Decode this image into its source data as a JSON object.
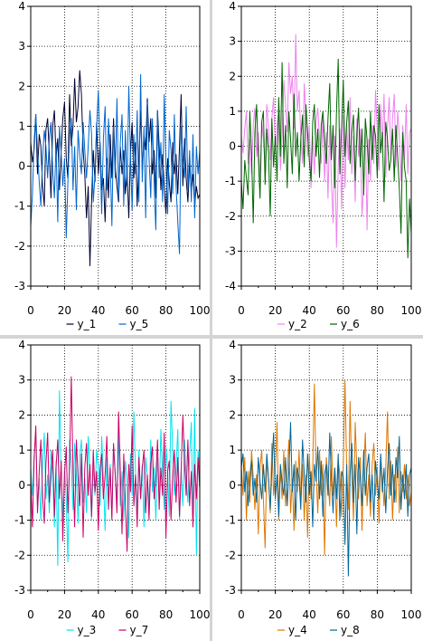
{
  "chart_data": [
    {
      "type": "line",
      "xlim": [
        0,
        100
      ],
      "ylim": [
        -3,
        4
      ],
      "xticks": [
        "0",
        "20",
        "40",
        "60",
        "80",
        "100"
      ],
      "yticks": [
        "-3",
        "-2",
        "-1",
        "0",
        "1",
        "2",
        "3",
        "4"
      ],
      "grid": true,
      "legend_position": "bottom",
      "series": [
        {
          "name": "y_1",
          "color": "#000033",
          "values": [
            0.6,
            0.1,
            0.4,
            1.3,
            -0.2,
            0.8,
            0.5,
            -0.5,
            -1.0,
            0.9,
            1.2,
            0.3,
            -0.8,
            1.0,
            1.4,
            0.2,
            0.7,
            -0.6,
            0.4,
            1.2,
            1.6,
            0.2,
            -0.3,
            1.8,
            0.5,
            1.0,
            2.2,
            1.1,
            1.5,
            2.4,
            1.8,
            0.4,
            -0.2,
            -1.3,
            -0.5,
            -2.5,
            -0.9,
            0.4,
            -0.4,
            1.1,
            -0.2,
            0.6,
            -0.6,
            -0.3,
            -1.4,
            0.2,
            -0.8,
            0.8,
            -0.3,
            1.2,
            0.0,
            -0.5,
            -0.9,
            0.5,
            -0.2,
            0.4,
            -0.7,
            -0.1,
            -1.3,
            0.3,
            1.1,
            -0.3,
            0.6,
            -1.0,
            0.2,
            1.4,
            -0.1,
            0.8,
            0.4,
            1.7,
            0.6,
            1.2,
            -0.2,
            0.4,
            -0.8,
            1.4,
            0.5,
            -0.6,
            0.3,
            -0.5,
            -1.2,
            0.2,
            -0.4,
            -0.9,
            0.6,
            -0.2,
            0.3,
            -0.7,
            0.5,
            1.8,
            -0.5,
            0.7,
            -0.3,
            -0.9,
            0.1,
            -0.6,
            -0.2,
            -1.0,
            -0.5,
            -0.8,
            -0.7
          ]
        },
        {
          "name": "y_5",
          "color": "#0066cc",
          "values": [
            -1.5,
            -0.7,
            0.6,
            1.3,
            0.4,
            -0.4,
            -1.0,
            0.2,
            0.9,
            0.5,
            -0.3,
            0.7,
            1.1,
            -0.1,
            -0.8,
            0.6,
            -1.4,
            1.0,
            0.3,
            -0.5,
            0.2,
            -1.8,
            -0.4,
            0.8,
            1.2,
            -0.6,
            0.5,
            -1.1,
            0.9,
            0.3,
            -0.2,
            1.1,
            0.4,
            -0.3,
            0.5,
            1.4,
            0.8,
            -0.9,
            -0.2,
            1.0,
            1.9,
            0.4,
            -1.2,
            0.7,
            1.5,
            -0.6,
            1.2,
            0.1,
            -1.5,
            1.0,
            -0.3,
            1.7,
            -0.8,
            0.6,
            1.3,
            -1.0,
            0.9,
            -0.5,
            2.0,
            0.3,
            -1.1,
            0.8,
            -0.2,
            1.4,
            -0.9,
            2.3,
            -0.4,
            1.0,
            -1.3,
            1.6,
            0.2,
            -0.8,
            1.2,
            -0.4,
            -1.6,
            1.4,
            -0.3,
            0.6,
            -0.9,
            1.8,
            0.1,
            -1.2,
            0.9,
            0.4,
            -0.7,
            1.3,
            -0.5,
            -1.4,
            -2.2,
            1.0,
            0.2,
            -0.3,
            1.5,
            -0.6,
            0.4,
            -0.9,
            0.8,
            -1.3,
            0.5,
            -0.2,
            0.4
          ]
        }
      ]
    },
    {
      "type": "line",
      "xlim": [
        0,
        100
      ],
      "ylim": [
        -4,
        4
      ],
      "xticks": [
        "0",
        "20",
        "40",
        "60",
        "80",
        "100"
      ],
      "yticks": [
        "-4",
        "-3",
        "-2",
        "-1",
        "0",
        "1",
        "2",
        "3",
        "4"
      ],
      "grid": true,
      "legend_position": "bottom",
      "series": [
        {
          "name": "y_2",
          "color": "#ee82ee",
          "values": [
            0.3,
            -0.2,
            0.5,
            1.0,
            -0.5,
            0.2,
            -0.8,
            0.6,
            1.1,
            -0.3,
            0.4,
            -1.0,
            0.7,
            0.2,
            -0.6,
            1.2,
            0.5,
            -0.4,
            0.8,
            1.4,
            -0.2,
            0.6,
            1.0,
            -0.7,
            0.3,
            1.9,
            1.2,
            0.4,
            2.4,
            1.5,
            2.0,
            0.5,
            3.2,
            1.0,
            1.6,
            0.3,
            -0.5,
            1.8,
            0.9,
            -0.3,
            0.6,
            -1.2,
            0.3,
            -0.8,
            0.7,
            1.1,
            0.2,
            -0.5,
            0.9,
            -1.0,
            0.4,
            -1.5,
            0.6,
            -0.9,
            -2.2,
            0.3,
            -2.9,
            -0.6,
            0.5,
            -1.8,
            0.9,
            -1.2,
            0.6,
            -0.4,
            1.4,
            -0.8,
            0.3,
            -1.6,
            0.8,
            -0.3,
            0.5,
            -2.0,
            -1.1,
            0.7,
            -2.4,
            0.2,
            -1.0,
            0.6,
            -0.5,
            1.6,
            0.4,
            -0.7,
            1.2,
            0.0,
            1.5,
            -0.9,
            0.5,
            1.4,
            -0.3,
            0.8,
            1.5,
            -0.6,
            1.0,
            0.3,
            -1.0,
            0.6,
            -0.4,
            1.2,
            -0.8,
            0.4,
            0.5
          ]
        },
        {
          "name": "y_6",
          "color": "#006600",
          "values": [
            -1.0,
            -1.8,
            -0.4,
            -0.9,
            -1.4,
            1.0,
            -0.2,
            -2.2,
            0.4,
            1.2,
            -0.3,
            -1.5,
            0.7,
            1.0,
            -1.1,
            0.5,
            -0.2,
            -2.0,
            0.8,
            -0.6,
            0.3,
            -1.0,
            1.4,
            -0.3,
            2.4,
            -0.5,
            0.6,
            -1.2,
            1.0,
            0.2,
            -0.8,
            1.5,
            -0.3,
            0.4,
            -1.0,
            0.2,
            0.9,
            -0.6,
            1.2,
            0.4,
            -0.4,
            -1.0,
            0.7,
            1.2,
            -0.3,
            0.5,
            -0.9,
            0.6,
            1.0,
            0.2,
            -0.5,
            0.8,
            1.8,
            -0.4,
            0.6,
            -1.2,
            1.0,
            2.5,
            -0.8,
            0.5,
            1.9,
            -0.3,
            0.7,
            1.3,
            -0.5,
            0.4,
            0.9,
            -1.0,
            0.3,
            1.1,
            -0.6,
            0.5,
            -1.4,
            0.8,
            0.2,
            -0.8,
            1.0,
            -0.4,
            0.6,
            0.3,
            -0.9,
            1.2,
            -0.2,
            0.4,
            -1.6,
            0.7,
            0.2,
            -0.7,
            -0.4,
            0.5,
            -1.0,
            0.6,
            -0.3,
            -1.2,
            -2.5,
            0.4,
            -0.6,
            -1.0,
            -3.2,
            -1.5,
            -2.5
          ]
        }
      ]
    },
    {
      "type": "line",
      "xlim": [
        0,
        100
      ],
      "ylim": [
        -3,
        4
      ],
      "xticks": [
        "0",
        "20",
        "40",
        "60",
        "80",
        "100"
      ],
      "yticks": [
        "-3",
        "-2",
        "-1",
        "0",
        "1",
        "2",
        "3",
        "4"
      ],
      "grid": true,
      "legend_position": "bottom",
      "series": [
        {
          "name": "y_3",
          "color": "#00e5ee",
          "values": [
            0.5,
            -0.3,
            0.8,
            1.4,
            -0.6,
            0.2,
            -1.0,
            0.6,
            1.5,
            -0.4,
            0.3,
            -0.8,
            1.0,
            0.4,
            -1.2,
            0.7,
            -2.3,
            2.7,
            0.2,
            -0.9,
            0.5,
            -0.4,
            -2.2,
            1.3,
            0.6,
            -0.7,
            1.2,
            0.3,
            -1.1,
            0.8,
            1.3,
            -0.5,
            0.2,
            -0.8,
            1.4,
            0.4,
            -1.0,
            0.6,
            -0.3,
            1.0,
            0.5,
            -0.6,
            1.4,
            0.2,
            -1.3,
            0.8,
            -0.4,
            0.6,
            -0.9,
            1.1,
            0.3,
            -0.5,
            1.5,
            -0.6,
            0.4,
            -1.0,
            0.7,
            0.2,
            -1.5,
            0.9,
            -0.3,
            2.1,
            0.4,
            -0.8,
            1.0,
            -0.4,
            0.6,
            -1.2,
            0.8,
            0.3,
            -0.6,
            1.3,
            -0.2,
            0.5,
            -1.0,
            0.8,
            -0.4,
            1.6,
            0.3,
            -0.7,
            1.1,
            0.4,
            -0.9,
            2.4,
            1.0,
            -0.3,
            0.5,
            1.6,
            -1.0,
            0.4,
            -0.6,
            1.3,
            0.2,
            -0.5,
            0.9,
            1.8,
            -1.2,
            2.2,
            -2.0,
            1.0,
            0.3
          ]
        },
        {
          "name": "y_7",
          "color": "#cc0066",
          "values": [
            0.2,
            -1.2,
            0.7,
            1.7,
            -0.8,
            0.4,
            1.3,
            -0.3,
            -1.1,
            0.6,
            1.5,
            -0.5,
            0.2,
            1.0,
            -0.9,
            0.5,
            1.3,
            -0.4,
            0.7,
            -1.6,
            0.3,
            1.1,
            -0.8,
            0.6,
            3.1,
            0.4,
            -1.2,
            1.3,
            0.2,
            -0.6,
            0.9,
            -1.5,
            0.5,
            1.2,
            -0.3,
            0.6,
            -0.9,
            1.0,
            -0.2,
            0.4,
            -1.3,
            0.5,
            0.9,
            -0.4,
            0.3,
            1.4,
            -0.7,
            0.5,
            -1.0,
            1.2,
            0.3,
            -0.8,
            2.1,
            0.4,
            -1.4,
            0.9,
            -0.5,
            -1.9,
            0.6,
            -0.2,
            1.7,
            -0.6,
            0.3,
            -1.2,
            0.8,
            -0.4,
            0.5,
            1.0,
            -0.8,
            0.3,
            -1.0,
            0.6,
            1.1,
            -0.4,
            0.2,
            1.3,
            -0.7,
            0.5,
            -0.3,
            1.5,
            -1.5,
            0.4,
            0.7,
            -1.0,
            0.3,
            1.0,
            -0.5,
            0.8,
            -0.9,
            0.4,
            2.0,
            0.6,
            -0.3,
            1.3,
            -0.6,
            0.4,
            -1.2,
            0.6,
            -0.4,
            0.8,
            -0.1
          ]
        }
      ]
    },
    {
      "type": "line",
      "xlim": [
        0,
        100
      ],
      "ylim": [
        -3,
        4
      ],
      "xticks": [
        "0",
        "20",
        "40",
        "60",
        "80",
        "100"
      ],
      "yticks": [
        "-3",
        "-2",
        "-1",
        "0",
        "1",
        "2",
        "3",
        "4"
      ],
      "grid": true,
      "legend_position": "bottom",
      "series": [
        {
          "name": "y_4",
          "color": "#dd7700",
          "values": [
            0.6,
            -0.3,
            0.8,
            -1.0,
            0.4,
            -0.5,
            1.0,
            0.2,
            -0.7,
            0.3,
            -1.4,
            0.5,
            1.0,
            -0.4,
            -1.8,
            0.7,
            0.2,
            -0.8,
            1.2,
            -0.3,
            0.4,
            1.8,
            -1.0,
            0.5,
            -0.4,
            1.0,
            -0.6,
            0.3,
            1.3,
            -0.8,
            0.2,
            -1.3,
            0.7,
            -0.2,
            1.0,
            -0.5,
            0.6,
            -1.0,
            0.3,
            -1.5,
            0.9,
            -0.4,
            0.5,
            2.9,
            0.4,
            -0.8,
            1.0,
            -0.3,
            0.6,
            -2.0,
            0.8,
            0.2,
            -0.6,
            1.4,
            -0.3,
            0.5,
            -1.2,
            0.7,
            0.3,
            -0.9,
            0.6,
            3.0,
            0.4,
            -0.7,
            2.4,
            0.3,
            -1.0,
            1.8,
            0.5,
            -0.4,
            0.8,
            -1.3,
            0.4,
            1.5,
            -0.6,
            0.3,
            -0.9,
            0.6,
            1.2,
            -0.3,
            0.5,
            -1.1,
            0.8,
            0.2,
            -0.6,
            0.5,
            2.1,
            -0.4,
            0.7,
            -1.0,
            0.3,
            -0.5,
            1.1,
            -0.8,
            0.4,
            -0.2,
            0.6,
            -0.4,
            0.3,
            -0.6,
            -0.2
          ]
        },
        {
          "name": "y_8",
          "color": "#006699",
          "values": [
            0.5,
            0.9,
            -0.2,
            0.4,
            -0.6,
            0.3,
            0.7,
            -0.3,
            0.2,
            -0.5,
            0.8,
            0.1,
            -0.4,
            0.6,
            -0.2,
            0.9,
            0.2,
            -0.7,
            0.5,
            1.5,
            -0.4,
            0.3,
            -0.9,
            0.6,
            0.1,
            -0.3,
            0.8,
            -0.6,
            0.4,
            1.8,
            -0.2,
            0.6,
            -1.0,
            0.5,
            0.2,
            -0.7,
            1.3,
            0.3,
            -0.5,
            0.9,
            -0.3,
            0.4,
            -1.2,
            0.6,
            0.1,
            1.1,
            -0.4,
            0.7,
            -0.9,
            0.3,
            0.6,
            -0.3,
            1.5,
            0.2,
            -0.8,
            0.5,
            -0.4,
            0.9,
            -1.0,
            0.4,
            0.2,
            -1.7,
            0.6,
            -2.6,
            0.3,
            1.2,
            -0.5,
            0.6,
            -1.4,
            0.8,
            0.2,
            -0.6,
            1.0,
            -0.3,
            0.5,
            0.9,
            -0.5,
            0.3,
            -1.0,
            0.7,
            0.1,
            -0.4,
            0.9,
            -0.2,
            0.5,
            -0.8,
            0.4,
            1.2,
            -0.3,
            0.6,
            -0.5,
            0.8,
            0.2,
            1.4,
            -0.7,
            0.3,
            -0.4,
            0.6,
            -0.9,
            0.3,
            0.5
          ]
        }
      ]
    }
  ]
}
